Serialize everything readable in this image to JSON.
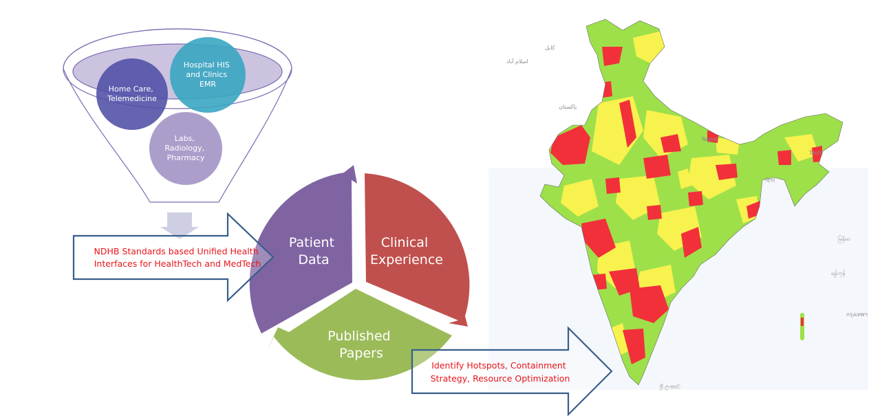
{
  "funnel": {
    "circle_home": [
      "Home Care,",
      "Telemedicine"
    ],
    "circle_hospital": [
      "Hospital HIS",
      "and Clinics",
      "EMR"
    ],
    "circle_labs": [
      "Labs,",
      "Radiology,",
      "Pharmacy"
    ]
  },
  "arrow_left": [
    "NDHB Standards based Unified Health",
    "Interfaces for HealthTech and MedTech"
  ],
  "cycle": {
    "patient": [
      "Patient",
      "Data"
    ],
    "clinical": [
      "Clinical",
      "Experience"
    ],
    "papers": [
      "Published",
      "Papers"
    ]
  },
  "arrow_right": [
    "Identify Hotspots,  Containment",
    "Strategy, Resource Optimization"
  ],
  "map_labels": [
    "کابل",
    "اسلام آباد",
    "پاکستان",
    "Nepal",
    "ছিখা",
    "မြန်မာ",
    "ရန်ကုန်",
    "กรุงเทพฯ",
    "ශ්‍රී ලංකාව",
    "Tashi"
  ],
  "colors": {
    "green": "#9de04a",
    "yellow": "#f7f24e",
    "red": "#f2303a",
    "purple": "#8064a2",
    "clinical_red": "#c0504d",
    "papers_green": "#9bbb59",
    "arrow_outline": "#385d8a",
    "text_red": "#e8141a"
  }
}
